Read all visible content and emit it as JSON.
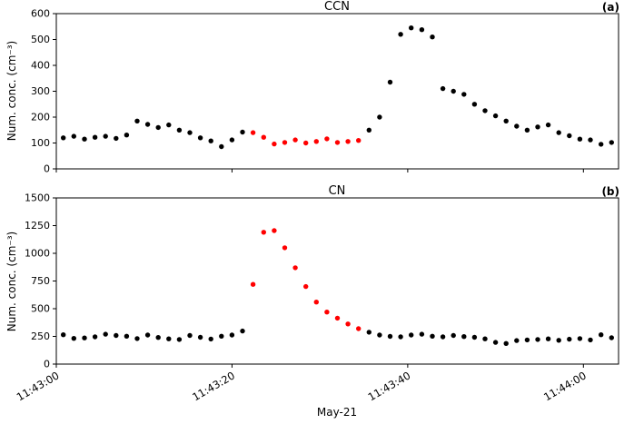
{
  "xlabel": "May-21",
  "palette": {
    "black": "#000000",
    "red": "#ff0000",
    "axis": "#000000"
  },
  "chart_data": [
    {
      "type": "scatter",
      "title": "CCN",
      "panel_label": "(a)",
      "ylabel": "Num. conc. (cm⁻³)",
      "ylim": [
        0,
        600
      ],
      "yticks": [
        0,
        100,
        200,
        300,
        400,
        500,
        600
      ],
      "xlim": [
        0,
        64
      ],
      "show_xlabels": false,
      "xticks": [
        {
          "seconds": 0,
          "label": "11:43:00"
        },
        {
          "seconds": 20,
          "label": "11:43:20"
        },
        {
          "seconds": 40,
          "label": "11:43:40"
        },
        {
          "seconds": 60,
          "label": "11:44:00"
        }
      ],
      "series": [
        {
          "name": "ccn-baseline-pre",
          "color": "#000000",
          "points": [
            [
              0.8,
              120
            ],
            [
              2.0,
              126
            ],
            [
              3.2,
              115
            ],
            [
              4.4,
              122
            ],
            [
              5.6,
              126
            ],
            [
              6.8,
              118
            ],
            [
              8.0,
              131
            ],
            [
              9.2,
              185
            ],
            [
              10.4,
              172
            ],
            [
              11.6,
              160
            ],
            [
              12.8,
              170
            ],
            [
              14.0,
              150
            ],
            [
              15.2,
              140
            ],
            [
              16.4,
              120
            ],
            [
              17.6,
              108
            ],
            [
              18.8,
              86
            ],
            [
              20.0,
              112
            ],
            [
              21.2,
              142
            ]
          ]
        },
        {
          "name": "ccn-flagged",
          "color": "#ff0000",
          "points": [
            [
              22.4,
              140
            ],
            [
              23.6,
              122
            ],
            [
              24.8,
              96
            ],
            [
              26.0,
              102
            ],
            [
              27.2,
              112
            ],
            [
              28.4,
              100
            ],
            [
              29.6,
              106
            ],
            [
              30.8,
              116
            ],
            [
              32.0,
              102
            ],
            [
              33.2,
              106
            ],
            [
              34.4,
              110
            ]
          ]
        },
        {
          "name": "ccn-peak-post",
          "color": "#000000",
          "points": [
            [
              35.6,
              150
            ],
            [
              36.8,
              200
            ],
            [
              38.0,
              335
            ],
            [
              39.2,
              520
            ],
            [
              40.4,
              545
            ],
            [
              41.6,
              538
            ],
            [
              42.8,
              510
            ],
            [
              44.0,
              310
            ],
            [
              45.2,
              300
            ],
            [
              46.4,
              288
            ],
            [
              47.6,
              250
            ],
            [
              48.8,
              225
            ],
            [
              50.0,
              205
            ],
            [
              51.2,
              185
            ],
            [
              52.4,
              165
            ],
            [
              53.6,
              150
            ],
            [
              54.8,
              162
            ],
            [
              56.0,
              170
            ],
            [
              57.2,
              140
            ],
            [
              58.4,
              128
            ],
            [
              59.6,
              115
            ],
            [
              60.8,
              112
            ],
            [
              62.0,
              95
            ],
            [
              63.2,
              102
            ]
          ]
        }
      ]
    },
    {
      "type": "scatter",
      "title": "CN",
      "panel_label": "(b)",
      "ylabel": "Num. conc. (cm⁻³)",
      "ylim": [
        0,
        1500
      ],
      "yticks": [
        0,
        250,
        500,
        750,
        1000,
        1250,
        1500
      ],
      "xlim": [
        0,
        64
      ],
      "show_xlabels": true,
      "xticks": [
        {
          "seconds": 0,
          "label": "11:43:00"
        },
        {
          "seconds": 20,
          "label": "11:43:20"
        },
        {
          "seconds": 40,
          "label": "11:43:40"
        },
        {
          "seconds": 60,
          "label": "11:44:00"
        }
      ],
      "series": [
        {
          "name": "cn-baseline-pre",
          "color": "#000000",
          "points": [
            [
              0.8,
              265
            ],
            [
              2.0,
              232
            ],
            [
              3.2,
              236
            ],
            [
              4.4,
              246
            ],
            [
              5.6,
              270
            ],
            [
              6.8,
              258
            ],
            [
              8.0,
              252
            ],
            [
              9.2,
              230
            ],
            [
              10.4,
              262
            ],
            [
              11.6,
              240
            ],
            [
              12.8,
              228
            ],
            [
              14.0,
              222
            ],
            [
              15.2,
              258
            ],
            [
              16.4,
              242
            ],
            [
              17.6,
              226
            ],
            [
              18.8,
              252
            ],
            [
              20.0,
              262
            ],
            [
              21.2,
              298
            ]
          ]
        },
        {
          "name": "cn-spike-flagged",
          "color": "#ff0000",
          "points": [
            [
              22.4,
              720
            ],
            [
              23.6,
              1190
            ],
            [
              24.8,
              1205
            ],
            [
              26.0,
              1050
            ],
            [
              27.2,
              870
            ],
            [
              28.4,
              700
            ],
            [
              29.6,
              560
            ],
            [
              30.8,
              470
            ],
            [
              32.0,
              415
            ],
            [
              33.2,
              362
            ],
            [
              34.4,
              320
            ]
          ]
        },
        {
          "name": "cn-baseline-post",
          "color": "#000000",
          "points": [
            [
              35.6,
              288
            ],
            [
              36.8,
              262
            ],
            [
              38.0,
              250
            ],
            [
              39.2,
              246
            ],
            [
              40.4,
              262
            ],
            [
              41.6,
              270
            ],
            [
              42.8,
              252
            ],
            [
              44.0,
              246
            ],
            [
              45.2,
              258
            ],
            [
              46.4,
              248
            ],
            [
              47.6,
              242
            ],
            [
              48.8,
              228
            ],
            [
              50.0,
              196
            ],
            [
              51.2,
              186
            ],
            [
              52.4,
              212
            ],
            [
              53.6,
              218
            ],
            [
              54.8,
              222
            ],
            [
              56.0,
              228
            ],
            [
              57.2,
              215
            ],
            [
              58.4,
              225
            ],
            [
              59.6,
              230
            ],
            [
              60.8,
              218
            ],
            [
              62.0,
              265
            ],
            [
              63.2,
              238
            ]
          ]
        }
      ]
    }
  ]
}
